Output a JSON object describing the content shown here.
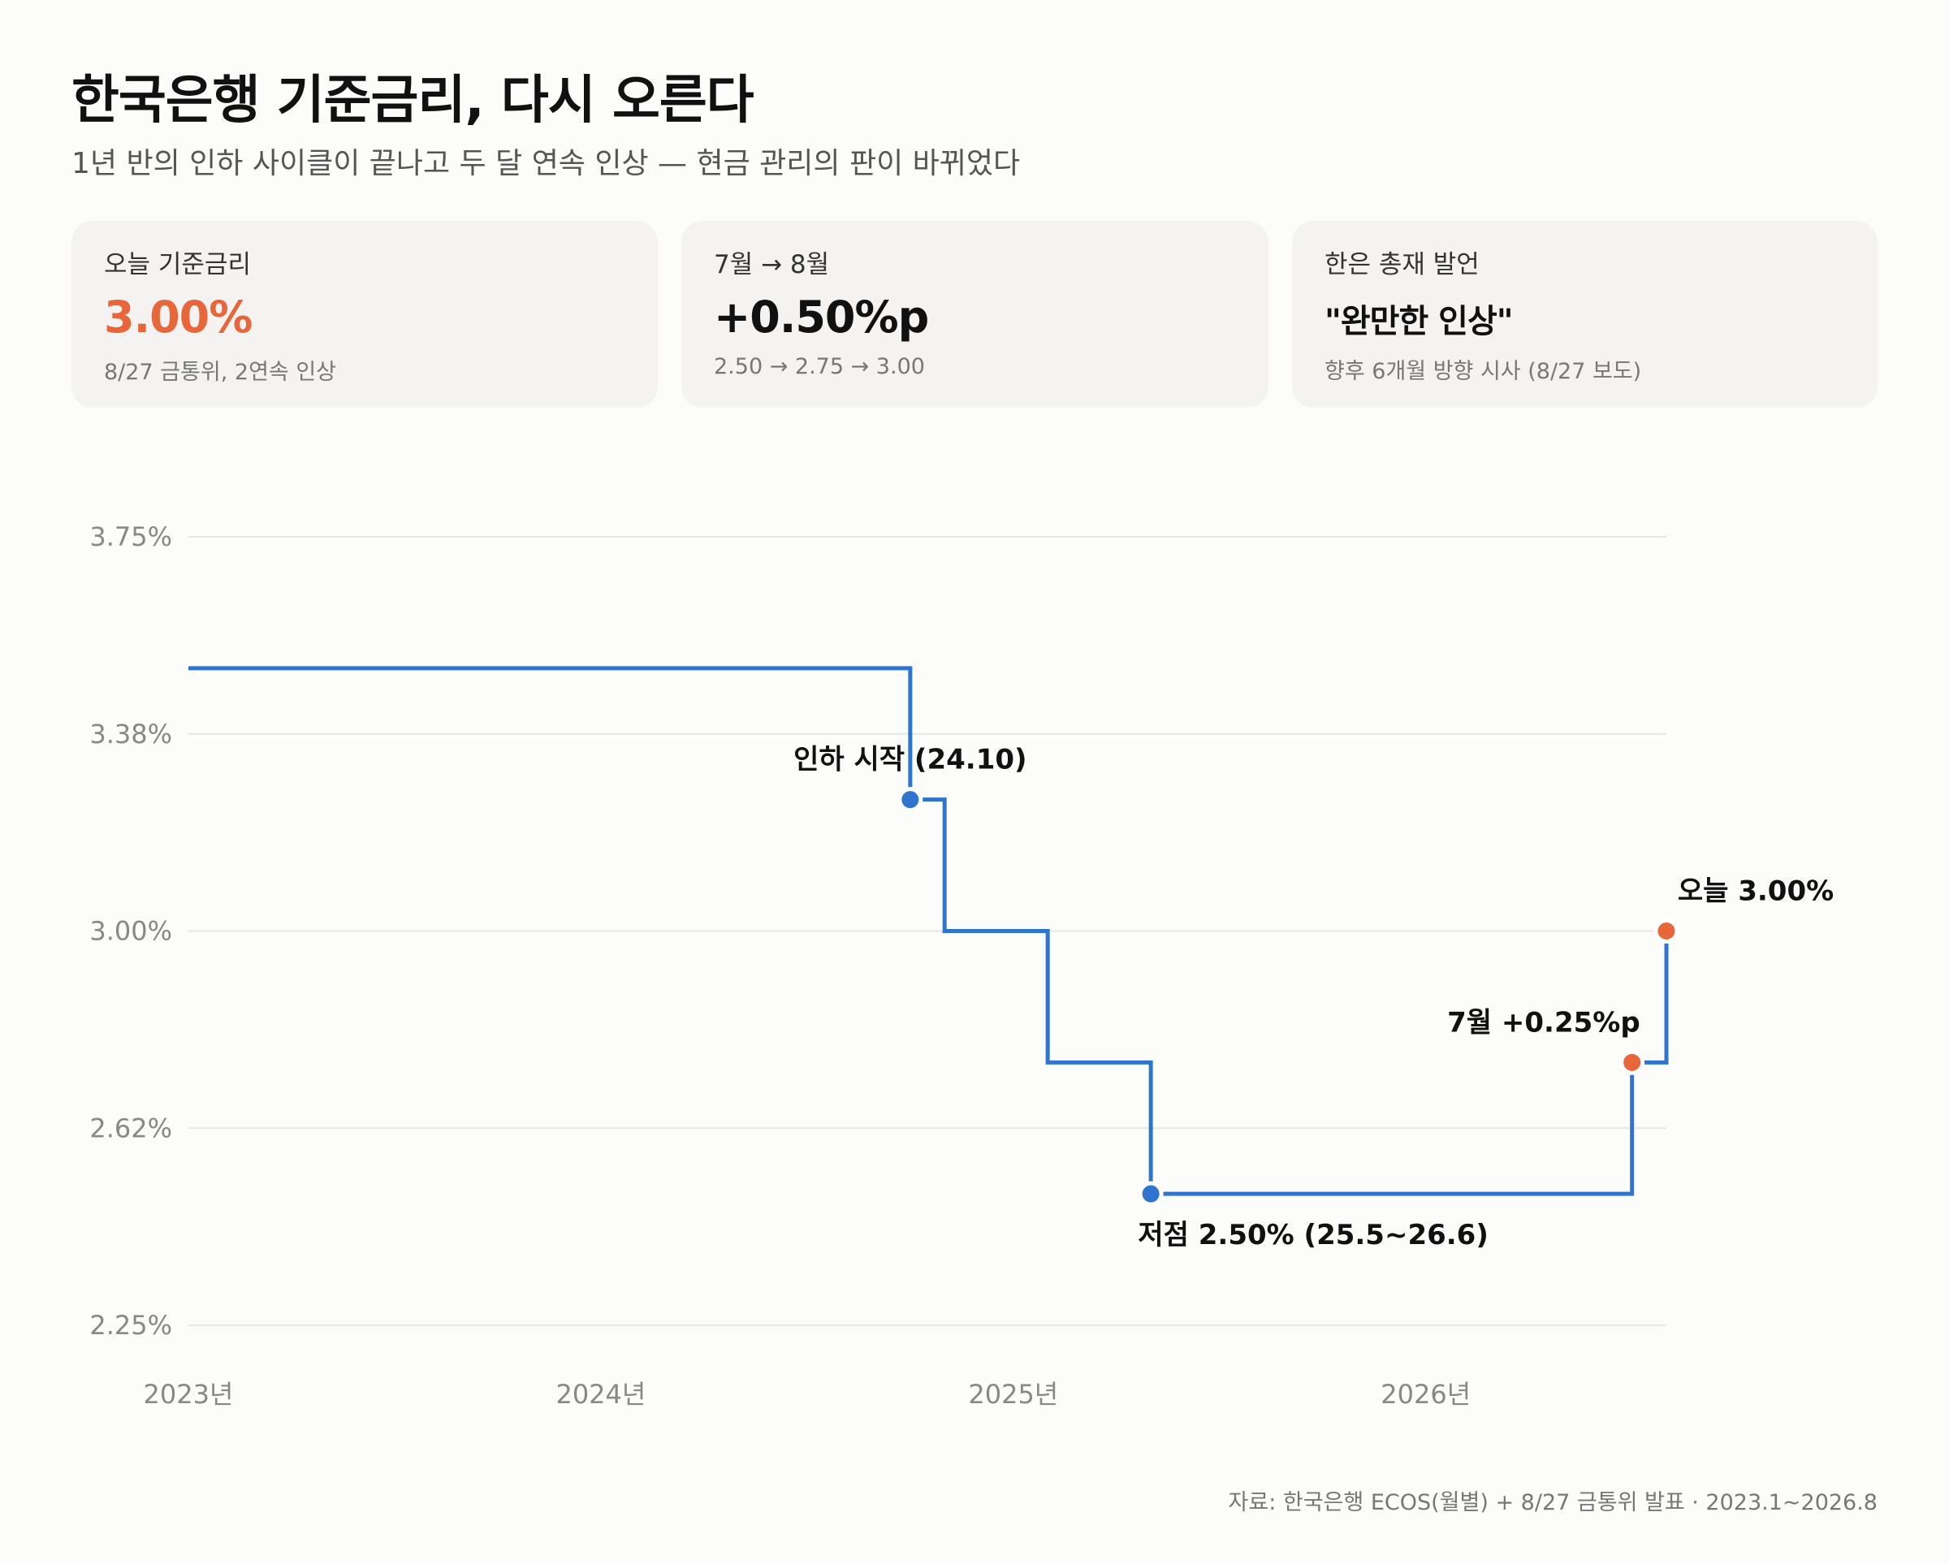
{
  "title": "한국은행 기준금리, 다시 오른다",
  "subtitle": "1년 반의 인하 사이클이 끝나고 두 달 연속 인상 — 현금 관리의 판이 바뀌었다",
  "cards": [
    {
      "label": "오늘 기준금리",
      "value": "3.00%",
      "note": "8/27 금통위, 2연속 인상",
      "value_color": "#e8673a"
    },
    {
      "label": "7월 → 8월",
      "value": "+0.50%p",
      "note": "2.50 → 2.75 → 3.00",
      "value_color": "#111111"
    },
    {
      "label": "한은 총재 발언",
      "value": "\"완만한 인상\"",
      "note": "향후 6개월 방향 시사 (8/27 보도)",
      "value_color": "#111111"
    }
  ],
  "source": "자료: 한국은행 ECOS(월별) + 8/27 금통위 발표 · 2023.1~2026.8",
  "colors": {
    "line": "#2f74cf",
    "accent": "#e8673a",
    "grid": "#e6e6e6",
    "tick": "#888888"
  },
  "chart_data": {
    "type": "line",
    "step": true,
    "title": "",
    "xlabel": "",
    "ylabel": "",
    "grid": true,
    "x_range": [
      "2023-01",
      "2026-08"
    ],
    "ylim": [
      2.25,
      3.75
    ],
    "y_ticks": [
      {
        "value": 3.75,
        "label": "3.75%"
      },
      {
        "value": 3.375,
        "label": "3.38%"
      },
      {
        "value": 3.0,
        "label": "3.00%"
      },
      {
        "value": 2.625,
        "label": "2.62%"
      },
      {
        "value": 2.25,
        "label": "2.25%"
      }
    ],
    "x_ticks": [
      {
        "value": "2023-01",
        "label": "2023년"
      },
      {
        "value": "2024-01",
        "label": "2024년"
      },
      {
        "value": "2025-01",
        "label": "2025년"
      },
      {
        "value": "2026-01",
        "label": "2026년"
      }
    ],
    "series": [
      {
        "color": "#2f74cf",
        "points": [
          {
            "x": "2023-01",
            "y": 3.5
          },
          {
            "x": "2024-10",
            "y": 3.25
          },
          {
            "x": "2024-11",
            "y": 3.0
          },
          {
            "x": "2025-02",
            "y": 2.75
          },
          {
            "x": "2025-05",
            "y": 2.5
          },
          {
            "x": "2026-07",
            "y": 2.75
          },
          {
            "x": "2026-08",
            "y": 3.0
          }
        ]
      }
    ],
    "annotations": [
      {
        "x": "2024-10",
        "y": 3.25,
        "text": "인하 시작 (24.10)",
        "color": "#2f74cf",
        "pos": "above"
      },
      {
        "x": "2025-05",
        "y": 2.5,
        "text": "저점 2.50% (25.5~26.6)",
        "color": "#2f74cf",
        "pos": "below"
      },
      {
        "x": "2026-07",
        "y": 2.75,
        "text": "7월 +0.25%p",
        "color": "#e8673a",
        "pos": "above-left"
      },
      {
        "x": "2026-08",
        "y": 3.0,
        "text": "오늘 3.00%",
        "color": "#e8673a",
        "pos": "above-right"
      }
    ]
  }
}
